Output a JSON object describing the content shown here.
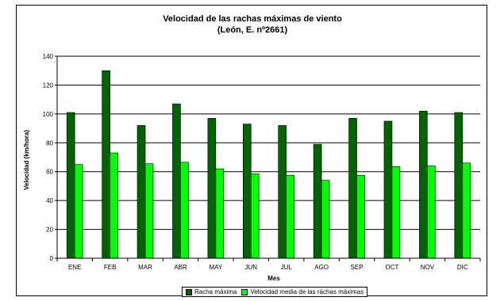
{
  "chart_data": {
    "type": "bar",
    "title": "Velocidad de las rachas máximas de viento",
    "subtitle": "(León, E. nº2661)",
    "xlabel": "Mes",
    "ylabel": "Velocidad (km/hora)",
    "ylim": [
      0,
      140
    ],
    "yticks": [
      0,
      20,
      40,
      60,
      80,
      100,
      120,
      140
    ],
    "grid": true,
    "legend_position": "bottom",
    "categories": [
      "ENE",
      "FEB",
      "MAR",
      "ABR",
      "MAY",
      "JUN",
      "JUL",
      "AGO",
      "SEP",
      "OCT",
      "NOV",
      "DIC"
    ],
    "series": [
      {
        "name": "Racha máxima",
        "color": "#006400",
        "values": [
          101,
          130,
          92,
          107,
          97,
          93,
          92,
          79,
          97,
          95,
          102,
          101
        ]
      },
      {
        "name": "Velocidad media de las ráchas máximas",
        "color": "#00ff00",
        "values": [
          65,
          73,
          65.5,
          66.5,
          62,
          58.5,
          57.5,
          54,
          57.5,
          63.5,
          64,
          66
        ]
      }
    ]
  }
}
